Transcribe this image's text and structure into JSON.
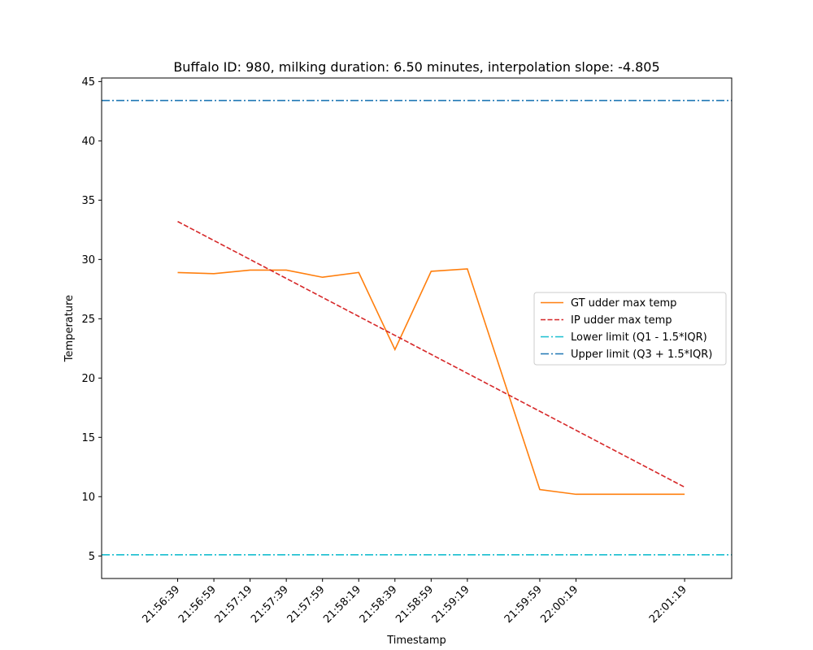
{
  "chart_data": {
    "type": "line",
    "title": "Buffalo ID: 980, milking duration: 6.50 minutes, interpolation slope: -4.805",
    "xlabel": "Timestamp",
    "ylabel": "Temperature",
    "x_range": [
      "21:55:57",
      "22:01:45"
    ],
    "ylim": [
      3.1,
      45.3
    ],
    "y_ticks": [
      5,
      10,
      15,
      20,
      25,
      30,
      35,
      40,
      45
    ],
    "x_ticks": [
      "21:56:39",
      "21:56:59",
      "21:57:19",
      "21:57:39",
      "21:57:59",
      "21:58:19",
      "21:58:39",
      "21:58:59",
      "21:59:19",
      "21:59:59",
      "22:00:19",
      "22:01:19"
    ],
    "x_tick_rotation_deg": 45,
    "grid": false,
    "legend_position": "center-right",
    "series": [
      {
        "name": "GT udder max temp",
        "style": "solid",
        "color": "#ff7f0e",
        "points": [
          {
            "x": "21:56:39",
            "y": 28.9
          },
          {
            "x": "21:56:59",
            "y": 28.8
          },
          {
            "x": "21:57:19",
            "y": 29.1
          },
          {
            "x": "21:57:39",
            "y": 29.1
          },
          {
            "x": "21:57:59",
            "y": 28.5
          },
          {
            "x": "21:58:19",
            "y": 28.9
          },
          {
            "x": "21:58:39",
            "y": 22.4
          },
          {
            "x": "21:58:59",
            "y": 29.0
          },
          {
            "x": "21:59:19",
            "y": 29.2
          },
          {
            "x": "21:59:59",
            "y": 10.6
          },
          {
            "x": "22:00:19",
            "y": 10.2
          },
          {
            "x": "22:01:19",
            "y": 10.2
          }
        ]
      },
      {
        "name": "IP udder max temp",
        "style": "dashed",
        "color": "#d62728",
        "points": [
          {
            "x": "21:56:39",
            "y": 33.2
          },
          {
            "x": "22:01:19",
            "y": 10.8
          }
        ]
      },
      {
        "name": "Lower limit (Q1 - 1.5*IQR)",
        "style": "dashdot",
        "color": "#17becf",
        "y": 5.1
      },
      {
        "name": "Upper limit (Q3 + 1.5*IQR)",
        "style": "dashdot",
        "color": "#1f77b4",
        "y": 43.4
      }
    ]
  }
}
